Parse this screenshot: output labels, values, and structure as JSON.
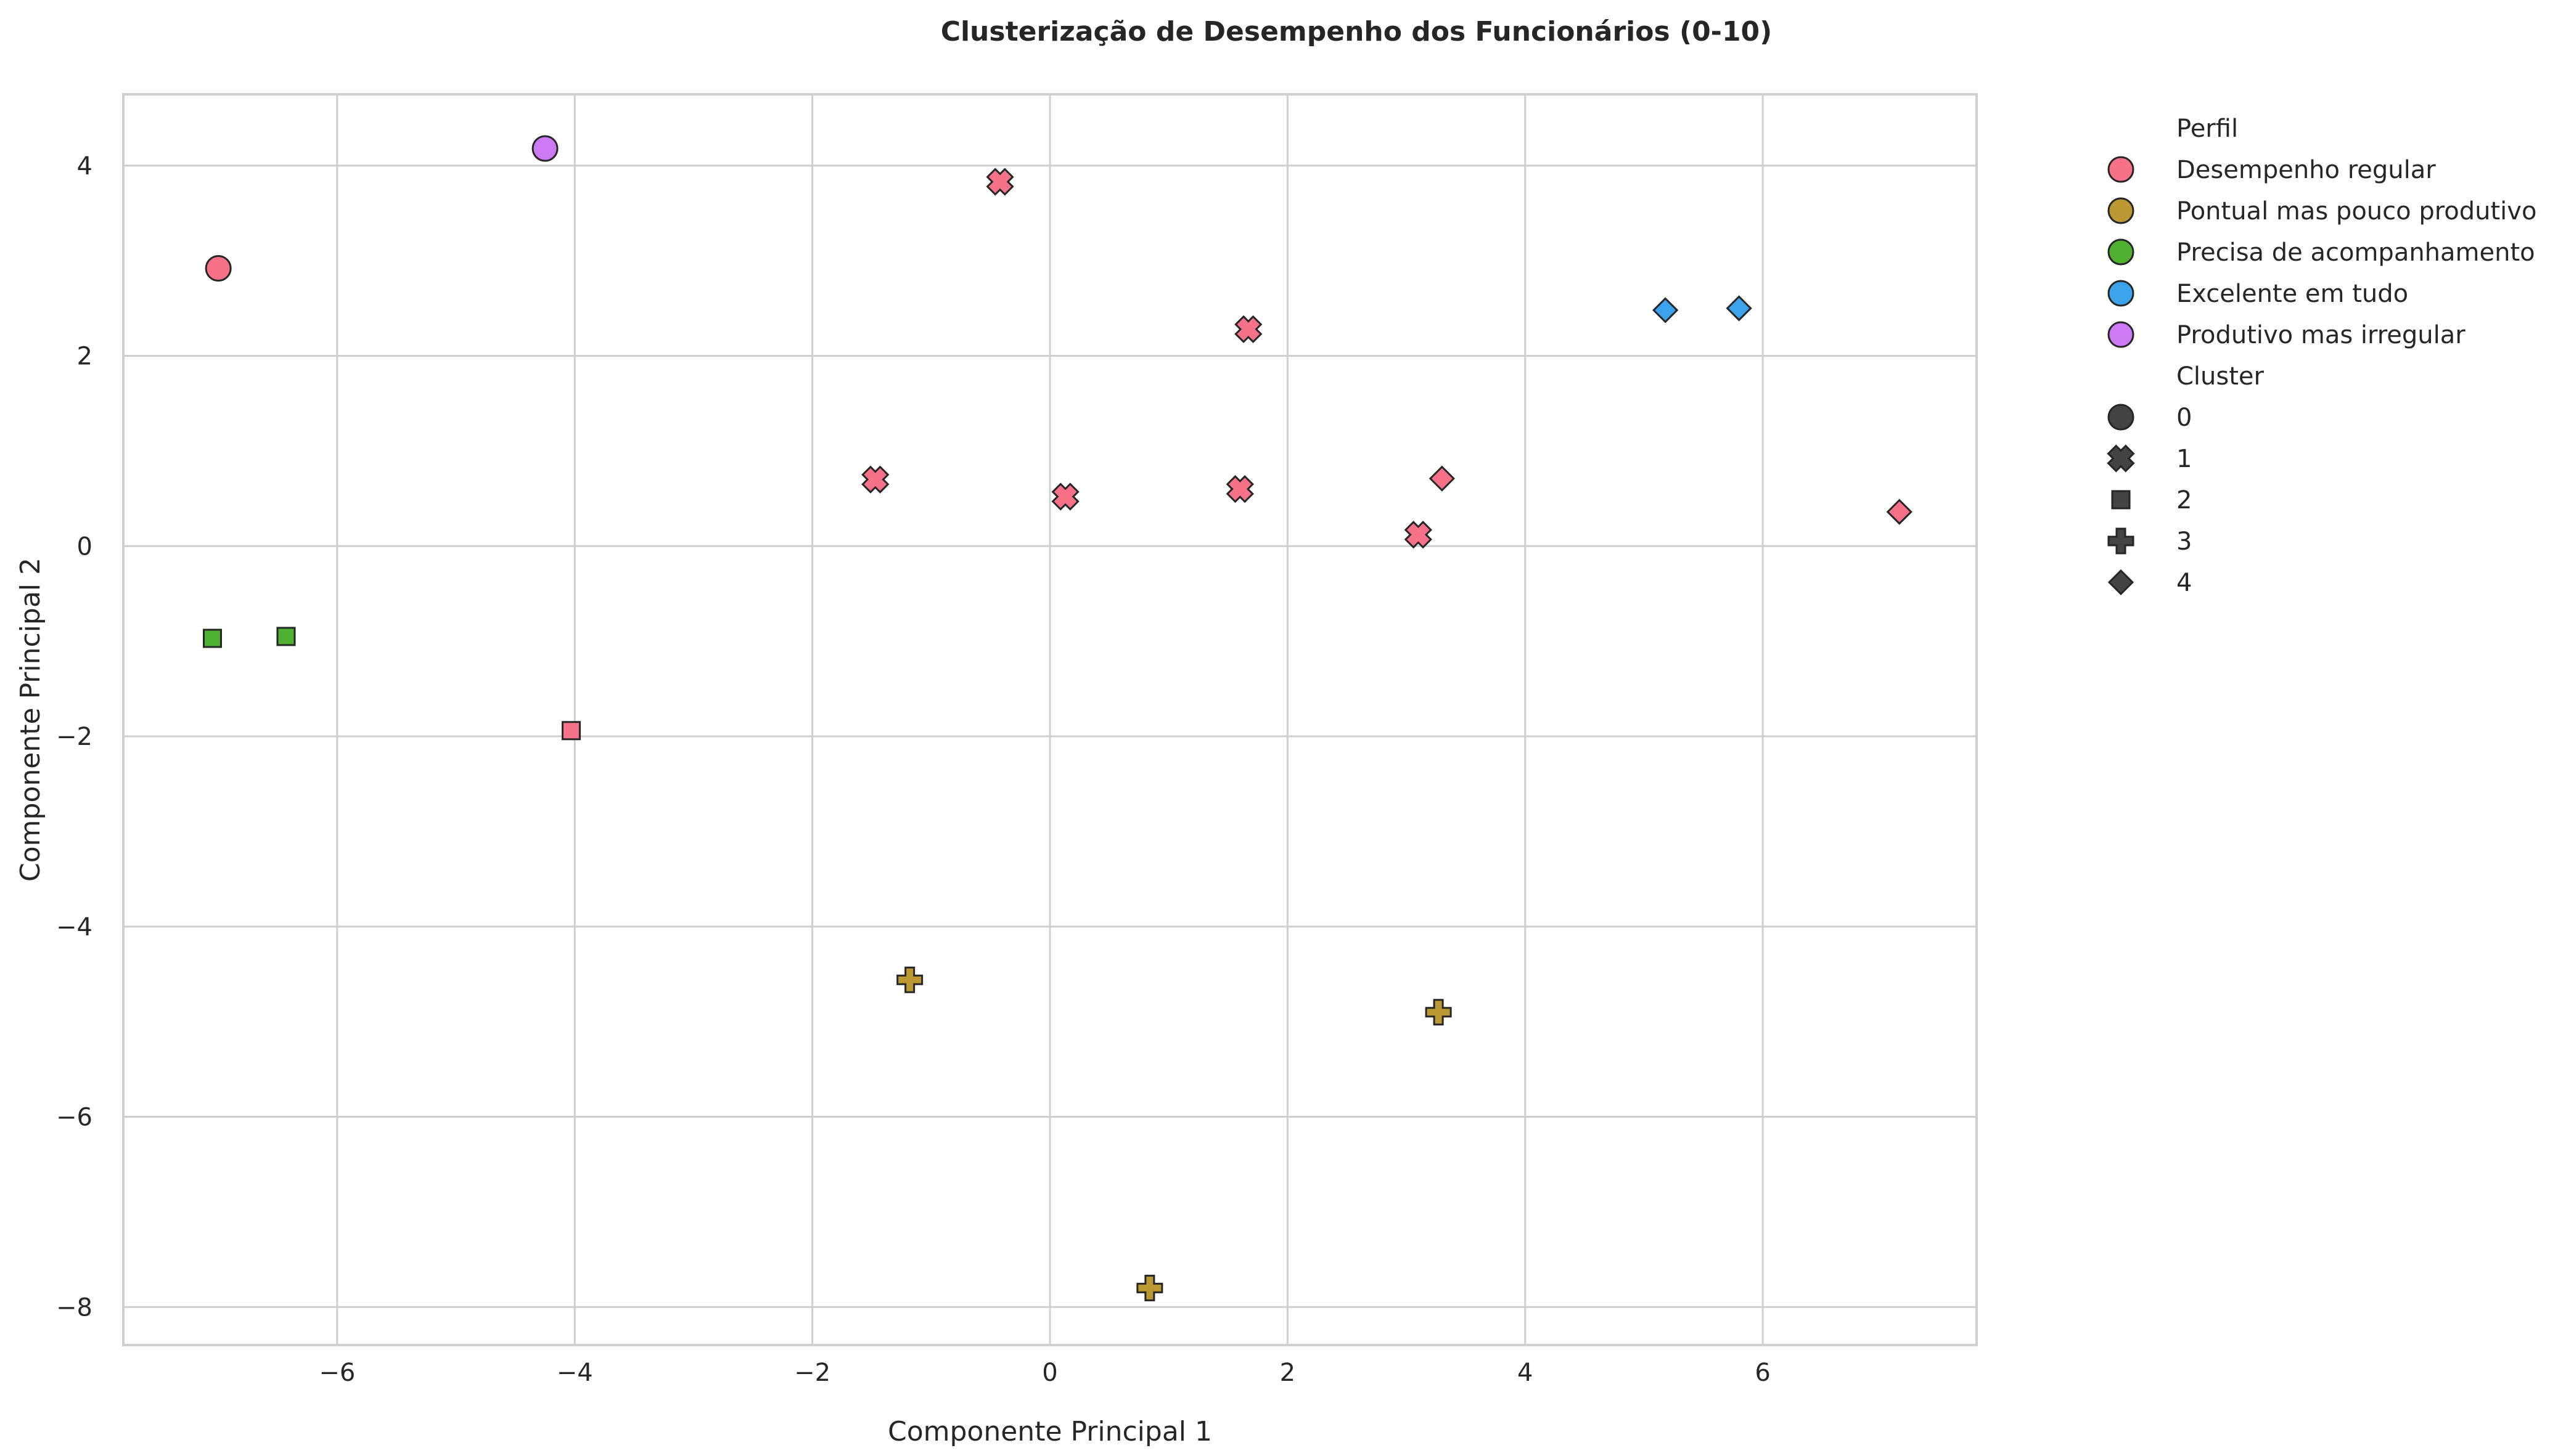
{
  "chart_data": {
    "type": "scatter",
    "title": "Clusterização de Desempenho dos Funcionários (0-10)",
    "xlabel": "Componente Principal 1",
    "ylabel": "Componente Principal 2",
    "xlim": [
      -7.8,
      7.8
    ],
    "ylim": [
      -8.4,
      4.75
    ],
    "xticks": [
      -6,
      -4,
      -2,
      0,
      2,
      4,
      6
    ],
    "yticks": [
      -8,
      -6,
      -4,
      -2,
      0,
      2,
      4
    ],
    "tick_labels_x": [
      "−6",
      "−4",
      "−2",
      "0",
      "2",
      "4",
      "6"
    ],
    "tick_labels_y": [
      "−8",
      "−6",
      "−4",
      "−2",
      "0",
      "2",
      "4"
    ],
    "grid": true,
    "legend_position": "outside-right",
    "legend": {
      "hue_title": "Perfil",
      "profiles": [
        {
          "name": "Desempenho regular",
          "color": "#f77189"
        },
        {
          "name": "Pontual mas pouco produtivo",
          "color": "#bb9832"
        },
        {
          "name": "Precisa de acompanhamento",
          "color": "#50b131"
        },
        {
          "name": "Excelente em tudo",
          "color": "#3ba3ec"
        },
        {
          "name": "Produtivo mas irregular",
          "color": "#cc7af4"
        }
      ],
      "style_title": "Cluster",
      "clusters": [
        {
          "name": "0",
          "marker": "circle"
        },
        {
          "name": "1",
          "marker": "x"
        },
        {
          "name": "2",
          "marker": "square"
        },
        {
          "name": "3",
          "marker": "plus"
        },
        {
          "name": "4",
          "marker": "diamond"
        }
      ]
    },
    "points": [
      {
        "x": -7.0,
        "y": 2.92,
        "profile": 0,
        "cluster": 0
      },
      {
        "x": -4.25,
        "y": 4.18,
        "profile": 4,
        "cluster": 0
      },
      {
        "x": -0.42,
        "y": 3.83,
        "profile": 0,
        "cluster": 1
      },
      {
        "x": 1.67,
        "y": 2.28,
        "profile": 0,
        "cluster": 1
      },
      {
        "x": -1.47,
        "y": 0.7,
        "profile": 0,
        "cluster": 1
      },
      {
        "x": 0.13,
        "y": 0.52,
        "profile": 0,
        "cluster": 1
      },
      {
        "x": 1.6,
        "y": 0.6,
        "profile": 0,
        "cluster": 1
      },
      {
        "x": 3.1,
        "y": 0.12,
        "profile": 0,
        "cluster": 1
      },
      {
        "x": -7.05,
        "y": -0.97,
        "profile": 2,
        "cluster": 2
      },
      {
        "x": -6.43,
        "y": -0.95,
        "profile": 2,
        "cluster": 2
      },
      {
        "x": -4.03,
        "y": -1.94,
        "profile": 0,
        "cluster": 2
      },
      {
        "x": -1.18,
        "y": -4.56,
        "profile": 1,
        "cluster": 3
      },
      {
        "x": 3.27,
        "y": -4.9,
        "profile": 1,
        "cluster": 3
      },
      {
        "x": 0.84,
        "y": -7.8,
        "profile": 1,
        "cluster": 3
      },
      {
        "x": 5.18,
        "y": 2.48,
        "profile": 3,
        "cluster": 4
      },
      {
        "x": 5.8,
        "y": 2.5,
        "profile": 3,
        "cluster": 4
      },
      {
        "x": 3.3,
        "y": 0.71,
        "profile": 0,
        "cluster": 4
      },
      {
        "x": 7.15,
        "y": 0.36,
        "profile": 0,
        "cluster": 4
      }
    ]
  }
}
